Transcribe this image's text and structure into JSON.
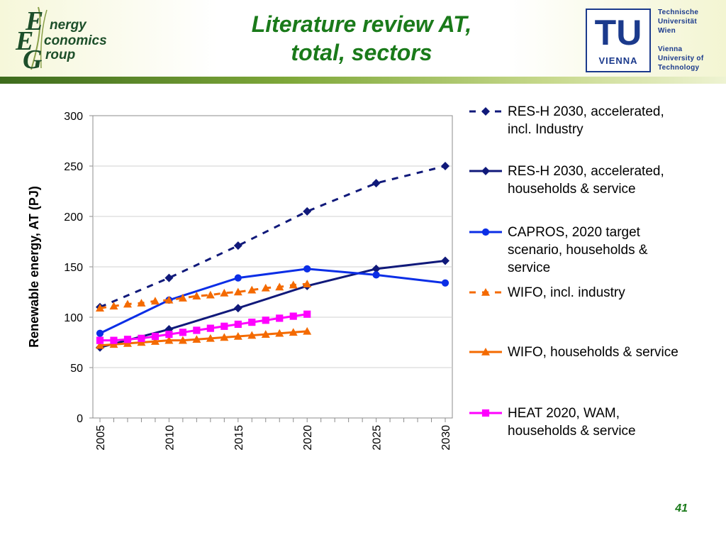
{
  "header": {
    "title_line1": "Literature review AT,",
    "title_line2": "total, sectors",
    "eeg_logo": {
      "line1": "nergy",
      "line2": "conomics",
      "line3": "roup"
    },
    "tu_logo": {
      "mark": "TU",
      "mark_sub": "VIENNA",
      "lines": [
        "Technische",
        "Universität",
        "Wien",
        "Vienna",
        "University of",
        "Technology"
      ]
    }
  },
  "page_number": "41",
  "colors": {
    "navy": "#10197a",
    "blue": "#0b2ee6",
    "orange": "#f46a00",
    "magenta": "#ff00ff",
    "title_green": "#1a7a1a"
  },
  "chart_data": {
    "type": "line",
    "ylabel": "Renewable energy, AT (PJ)",
    "xlabel": "",
    "xlim": [
      2005,
      2030
    ],
    "ylim": [
      0,
      300
    ],
    "x_ticks": [
      2005,
      2010,
      2015,
      2020,
      2025,
      2030
    ],
    "y_ticks": [
      0,
      50,
      100,
      150,
      200,
      250,
      300
    ],
    "grid": "horizontal",
    "legend_position": "right",
    "series": [
      {
        "name": "RES-H 2030, accelerated, incl. Industry",
        "name_lines": [
          "RES-H 2030, accelerated,",
          "incl. Industry"
        ],
        "style": "dashed",
        "marker": "diamond",
        "color": "#10197a",
        "x": [
          2005,
          2010,
          2015,
          2020,
          2025,
          2030
        ],
        "y": [
          110,
          139,
          171,
          205,
          233,
          250
        ]
      },
      {
        "name": "RES-H 2030, accelerated, households & service",
        "name_lines": [
          "RES-H 2030, accelerated,",
          "households & service"
        ],
        "style": "solid",
        "marker": "diamond",
        "color": "#10197a",
        "x": [
          2005,
          2010,
          2015,
          2020,
          2025,
          2030
        ],
        "y": [
          70,
          88,
          109,
          131,
          148,
          156
        ]
      },
      {
        "name": "CAPROS, 2020 target scenario, households & service",
        "name_lines": [
          "CAPROS, 2020 target",
          "scenario, households &",
          "service"
        ],
        "style": "solid",
        "marker": "circle",
        "color": "#0b2ee6",
        "x": [
          2005,
          2010,
          2015,
          2020,
          2025,
          2030
        ],
        "y": [
          84,
          117,
          139,
          148,
          142,
          134
        ]
      },
      {
        "name": "WIFO, incl. industry",
        "name_lines": [
          "WIFO, incl. industry"
        ],
        "style": "dashed",
        "marker": "triangle",
        "color": "#f46a00",
        "x": [
          2005,
          2006,
          2007,
          2008,
          2009,
          2010,
          2011,
          2012,
          2013,
          2014,
          2015,
          2016,
          2017,
          2018,
          2019,
          2020
        ],
        "y": [
          109,
          111,
          113,
          114,
          116,
          117,
          119,
          121,
          122,
          124,
          125,
          127,
          129,
          130,
          132,
          133
        ]
      },
      {
        "name": "WIFO, households & service",
        "name_lines": [
          "WIFO, households & service"
        ],
        "style": "solid",
        "marker": "triangle",
        "color": "#f46a00",
        "x": [
          2005,
          2006,
          2007,
          2008,
          2009,
          2010,
          2011,
          2012,
          2013,
          2014,
          2015,
          2016,
          2017,
          2018,
          2019,
          2020
        ],
        "y": [
          72,
          73,
          74,
          75,
          76,
          77,
          77,
          78,
          79,
          80,
          81,
          82,
          83,
          84,
          85,
          86
        ]
      },
      {
        "name": "HEAT 2020, WAM, households & service",
        "name_lines": [
          "HEAT 2020, WAM,",
          "households & service"
        ],
        "style": "solid",
        "marker": "square",
        "color": "#ff00ff",
        "x": [
          2005,
          2006,
          2007,
          2008,
          2009,
          2010,
          2011,
          2012,
          2013,
          2014,
          2015,
          2016,
          2017,
          2018,
          2019,
          2020
        ],
        "y": [
          77,
          77,
          78,
          79,
          81,
          83,
          85,
          87,
          89,
          91,
          93,
          95,
          97,
          99,
          101,
          103
        ]
      }
    ]
  }
}
